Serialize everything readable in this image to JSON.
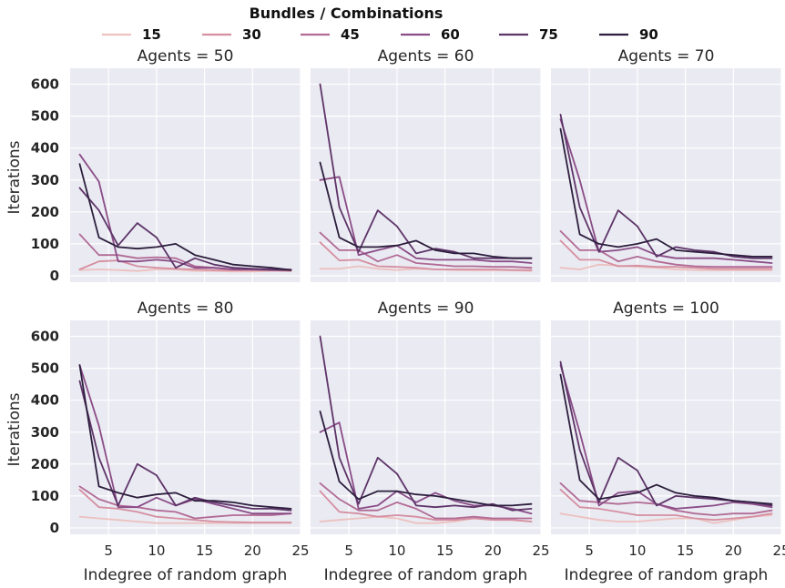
{
  "chart_data": {
    "type": "line",
    "legend_title": "Bundles / Combinations",
    "legend_position": "top-center",
    "xlabel": "Indegree of random graph",
    "ylabel": "Iterations",
    "xlim": [
      1,
      25
    ],
    "ylim": [
      -20,
      650
    ],
    "xticks": [
      5,
      10,
      15,
      20,
      25
    ],
    "yticks": [
      0,
      100,
      200,
      300,
      400,
      500,
      600
    ],
    "grid": true,
    "x": [
      2,
      4,
      6,
      8,
      10,
      12,
      14,
      16,
      18,
      20,
      22,
      24
    ],
    "series_names": [
      "15",
      "30",
      "45",
      "60",
      "75",
      "90"
    ],
    "colors": [
      "#ecc1bf",
      "#d58fa1",
      "#b16b95",
      "#8a4c87",
      "#5d3468",
      "#2c1e3d"
    ],
    "panels": [
      {
        "title": "Agents = 50",
        "series": [
          {
            "name": "15",
            "values": [
              18,
              20,
              18,
              15,
              20,
              20,
              15,
              15,
              13,
              13,
              15,
              15
            ]
          },
          {
            "name": "30",
            "values": [
              20,
              45,
              48,
              30,
              25,
              22,
              20,
              18,
              17,
              17,
              17,
              15
            ]
          },
          {
            "name": "45",
            "values": [
              130,
              65,
              65,
              55,
              58,
              55,
              30,
              25,
              20,
              20,
              20,
              20
            ]
          },
          {
            "name": "60",
            "values": [
              380,
              295,
              45,
              45,
              50,
              45,
              25,
              25,
              20,
              20,
              18,
              18
            ]
          },
          {
            "name": "75",
            "values": [
              275,
              205,
              95,
              165,
              120,
              25,
              55,
              35,
              25,
              22,
              20,
              18
            ]
          },
          {
            "name": "90",
            "values": [
              350,
              120,
              90,
              85,
              90,
              100,
              65,
              50,
              35,
              30,
              25,
              18
            ]
          }
        ]
      },
      {
        "title": "Agents = 60",
        "series": [
          {
            "name": "15",
            "values": [
              22,
              22,
              30,
              22,
              18,
              22,
              20,
              18,
              17,
              17,
              17,
              15
            ]
          },
          {
            "name": "30",
            "values": [
              105,
              48,
              50,
              30,
              28,
              25,
              20,
              20,
              20,
              20,
              18,
              18
            ]
          },
          {
            "name": "45",
            "values": [
              135,
              80,
              80,
              45,
              65,
              40,
              35,
              30,
              30,
              28,
              28,
              25
            ]
          },
          {
            "name": "60",
            "values": [
              300,
              310,
              65,
              80,
              95,
              55,
              50,
              50,
              50,
              45,
              45,
              40
            ]
          },
          {
            "name": "75",
            "values": [
              600,
              215,
              75,
              205,
              155,
              70,
              85,
              75,
              55,
              55,
              55,
              55
            ]
          },
          {
            "name": "90",
            "values": [
              355,
              120,
              90,
              90,
              95,
              110,
              80,
              70,
              70,
              60,
              55,
              55
            ]
          }
        ]
      },
      {
        "title": "Agents = 70",
        "series": [
          {
            "name": "15",
            "values": [
              25,
              20,
              35,
              32,
              28,
              25,
              20,
              18,
              17,
              17,
              17,
              17
            ]
          },
          {
            "name": "30",
            "values": [
              110,
              50,
              50,
              30,
              32,
              28,
              28,
              25,
              22,
              22,
              22,
              22
            ]
          },
          {
            "name": "45",
            "values": [
              140,
              80,
              80,
              45,
              60,
              45,
              35,
              30,
              28,
              28,
              28,
              28
            ]
          },
          {
            "name": "60",
            "values": [
              490,
              300,
              75,
              80,
              90,
              65,
              55,
              55,
              55,
              50,
              45,
              40
            ]
          },
          {
            "name": "75",
            "values": [
              505,
              215,
              75,
              205,
              155,
              60,
              90,
              80,
              75,
              60,
              55,
              55
            ]
          },
          {
            "name": "90",
            "values": [
              460,
              130,
              100,
              90,
              100,
              115,
              80,
              75,
              70,
              65,
              60,
              60
            ]
          }
        ]
      },
      {
        "title": "Agents = 80",
        "series": [
          {
            "name": "15",
            "values": [
              35,
              30,
              25,
              20,
              15,
              15,
              15,
              15,
              15,
              15,
              15,
              15
            ]
          },
          {
            "name": "30",
            "values": [
              120,
              65,
              60,
              50,
              35,
              30,
              25,
              20,
              18,
              17,
              17,
              17
            ]
          },
          {
            "name": "45",
            "values": [
              130,
              90,
              70,
              65,
              55,
              50,
              30,
              35,
              40,
              40,
              40,
              45
            ]
          },
          {
            "name": "60",
            "values": [
              510,
              320,
              65,
              65,
              95,
              70,
              90,
              75,
              60,
              45,
              45,
              45
            ]
          },
          {
            "name": "75",
            "values": [
              460,
              220,
              70,
              200,
              165,
              70,
              95,
              80,
              70,
              60,
              60,
              55
            ]
          },
          {
            "name": "90",
            "values": [
              510,
              130,
              110,
              95,
              105,
              110,
              85,
              85,
              80,
              70,
              65,
              60
            ]
          }
        ]
      },
      {
        "title": "Agents = 90",
        "series": [
          {
            "name": "15",
            "values": [
              20,
              25,
              30,
              35,
              30,
              15,
              15,
              20,
              30,
              30,
              25,
              20
            ]
          },
          {
            "name": "30",
            "values": [
              115,
              50,
              45,
              35,
              40,
              35,
              25,
              25,
              30,
              25,
              25,
              20
            ]
          },
          {
            "name": "45",
            "values": [
              140,
              90,
              55,
              55,
              80,
              60,
              30,
              30,
              35,
              30,
              30,
              30
            ]
          },
          {
            "name": "60",
            "values": [
              300,
              330,
              60,
              70,
              115,
              80,
              110,
              85,
              70,
              70,
              60,
              45
            ]
          },
          {
            "name": "75",
            "values": [
              600,
              220,
              75,
              220,
              170,
              70,
              65,
              70,
              65,
              75,
              55,
              60
            ]
          },
          {
            "name": "90",
            "values": [
              365,
              145,
              90,
              115,
              115,
              105,
              100,
              90,
              80,
              70,
              70,
              75
            ]
          }
        ]
      },
      {
        "title": "Agents = 100",
        "series": [
          {
            "name": "15",
            "values": [
              45,
              35,
              25,
              20,
              20,
              25,
              30,
              30,
              15,
              25,
              35,
              40
            ]
          },
          {
            "name": "30",
            "values": [
              120,
              65,
              60,
              50,
              40,
              40,
              40,
              30,
              25,
              30,
              35,
              45
            ]
          },
          {
            "name": "45",
            "values": [
              140,
              85,
              80,
              75,
              80,
              75,
              55,
              45,
              40,
              45,
              45,
              55
            ]
          },
          {
            "name": "60",
            "values": [
              510,
              300,
              70,
              110,
              115,
              75,
              60,
              65,
              70,
              80,
              75,
              65
            ]
          },
          {
            "name": "75",
            "values": [
              520,
              245,
              80,
              220,
              180,
              70,
              100,
              95,
              90,
              85,
              80,
              70
            ]
          },
          {
            "name": "90",
            "values": [
              480,
              150,
              90,
              100,
              110,
              135,
              110,
              100,
              95,
              85,
              80,
              75
            ]
          }
        ]
      }
    ]
  }
}
